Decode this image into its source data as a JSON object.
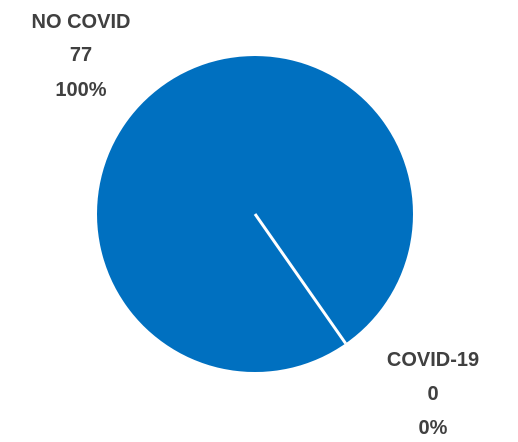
{
  "chart_data": {
    "type": "pie",
    "title": "",
    "slices": [
      {
        "label": "NO COVID",
        "value": 77,
        "percent": "100%"
      },
      {
        "label": "COVID-19",
        "value": 0,
        "percent": "0%"
      }
    ],
    "colors": {
      "slice": "#0070C0",
      "separator": "#FFFFFF",
      "label_text": "#404040"
    },
    "legend": "none"
  }
}
